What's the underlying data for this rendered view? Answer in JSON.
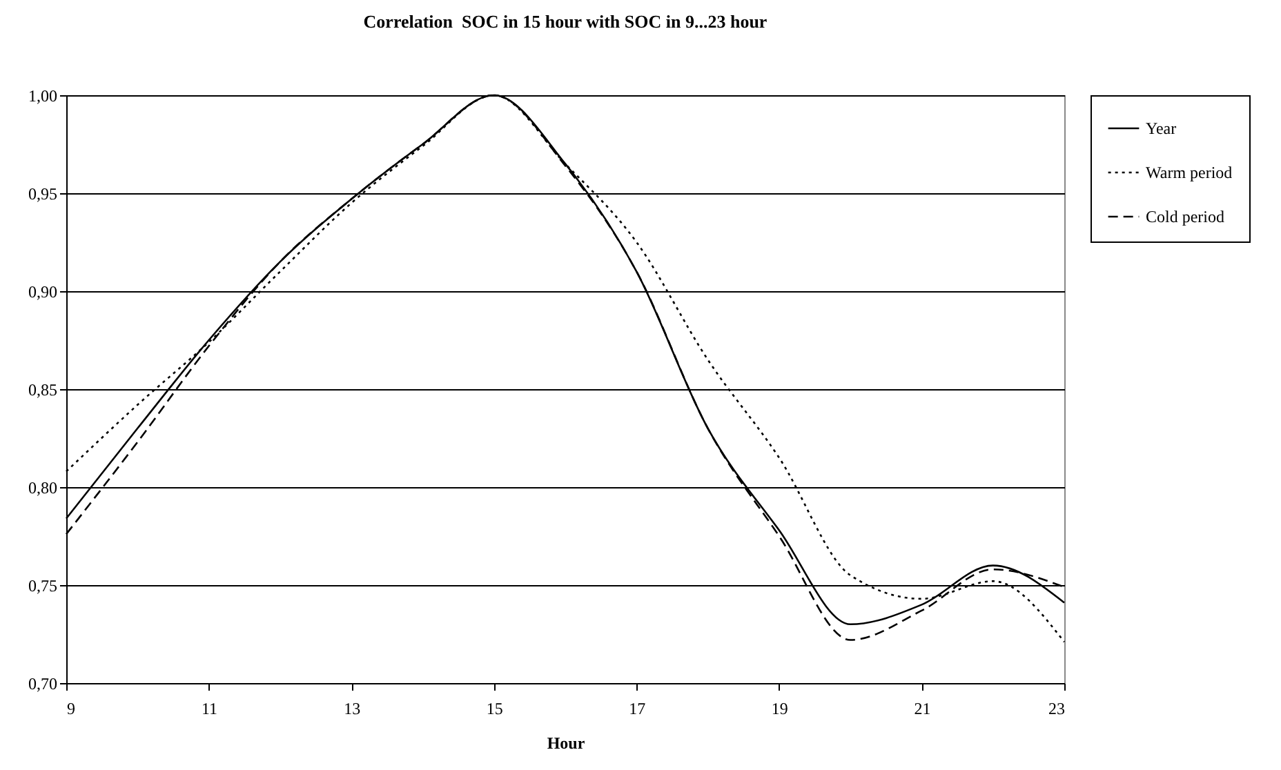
{
  "chart_data": {
    "type": "line",
    "title": "Correlation  SOC in 15 hour with SOC in 9...23 hour",
    "xlabel": "Hour",
    "x": [
      9,
      10,
      11,
      12,
      13,
      14,
      15,
      16,
      17,
      18,
      19,
      20,
      21,
      22,
      23
    ],
    "series": [
      {
        "name": "Year",
        "color": "#000000",
        "line_style": "solid",
        "values": [
          0.784,
          0.83,
          0.875,
          0.915,
          0.947,
          0.975,
          1.0,
          0.965,
          0.91,
          0.83,
          0.778,
          0.73,
          0.74,
          0.76,
          0.741
        ]
      },
      {
        "name": "Warm period",
        "color": "#000000",
        "line_style": "dotted",
        "values": [
          0.808,
          0.842,
          0.874,
          0.91,
          0.945,
          0.974,
          1.0,
          0.965,
          0.925,
          0.865,
          0.815,
          0.755,
          0.743,
          0.752,
          0.721
        ]
      },
      {
        "name": "Cold period",
        "color": "#000000",
        "line_style": "dashed",
        "values": [
          0.776,
          0.823,
          0.872,
          0.915,
          0.947,
          0.975,
          1.0,
          0.964,
          0.91,
          0.83,
          0.775,
          0.722,
          0.737,
          0.758,
          0.749
        ]
      }
    ],
    "xlim": [
      9,
      23
    ],
    "xticks": [
      9,
      11,
      13,
      15,
      17,
      19,
      21,
      23
    ],
    "ylim": [
      0.7,
      1.0
    ],
    "yticks": [
      {
        "value": 0.7,
        "label": "0,70"
      },
      {
        "value": 0.75,
        "label": "0,75"
      },
      {
        "value": 0.8,
        "label": "0,80"
      },
      {
        "value": 0.85,
        "label": "0,85"
      },
      {
        "value": 0.9,
        "label": "0,90"
      },
      {
        "value": 0.95,
        "label": "0,95"
      },
      {
        "value": 1.0,
        "label": "1,00"
      }
    ],
    "grid": "y",
    "legend": "right",
    "marker": "none"
  }
}
